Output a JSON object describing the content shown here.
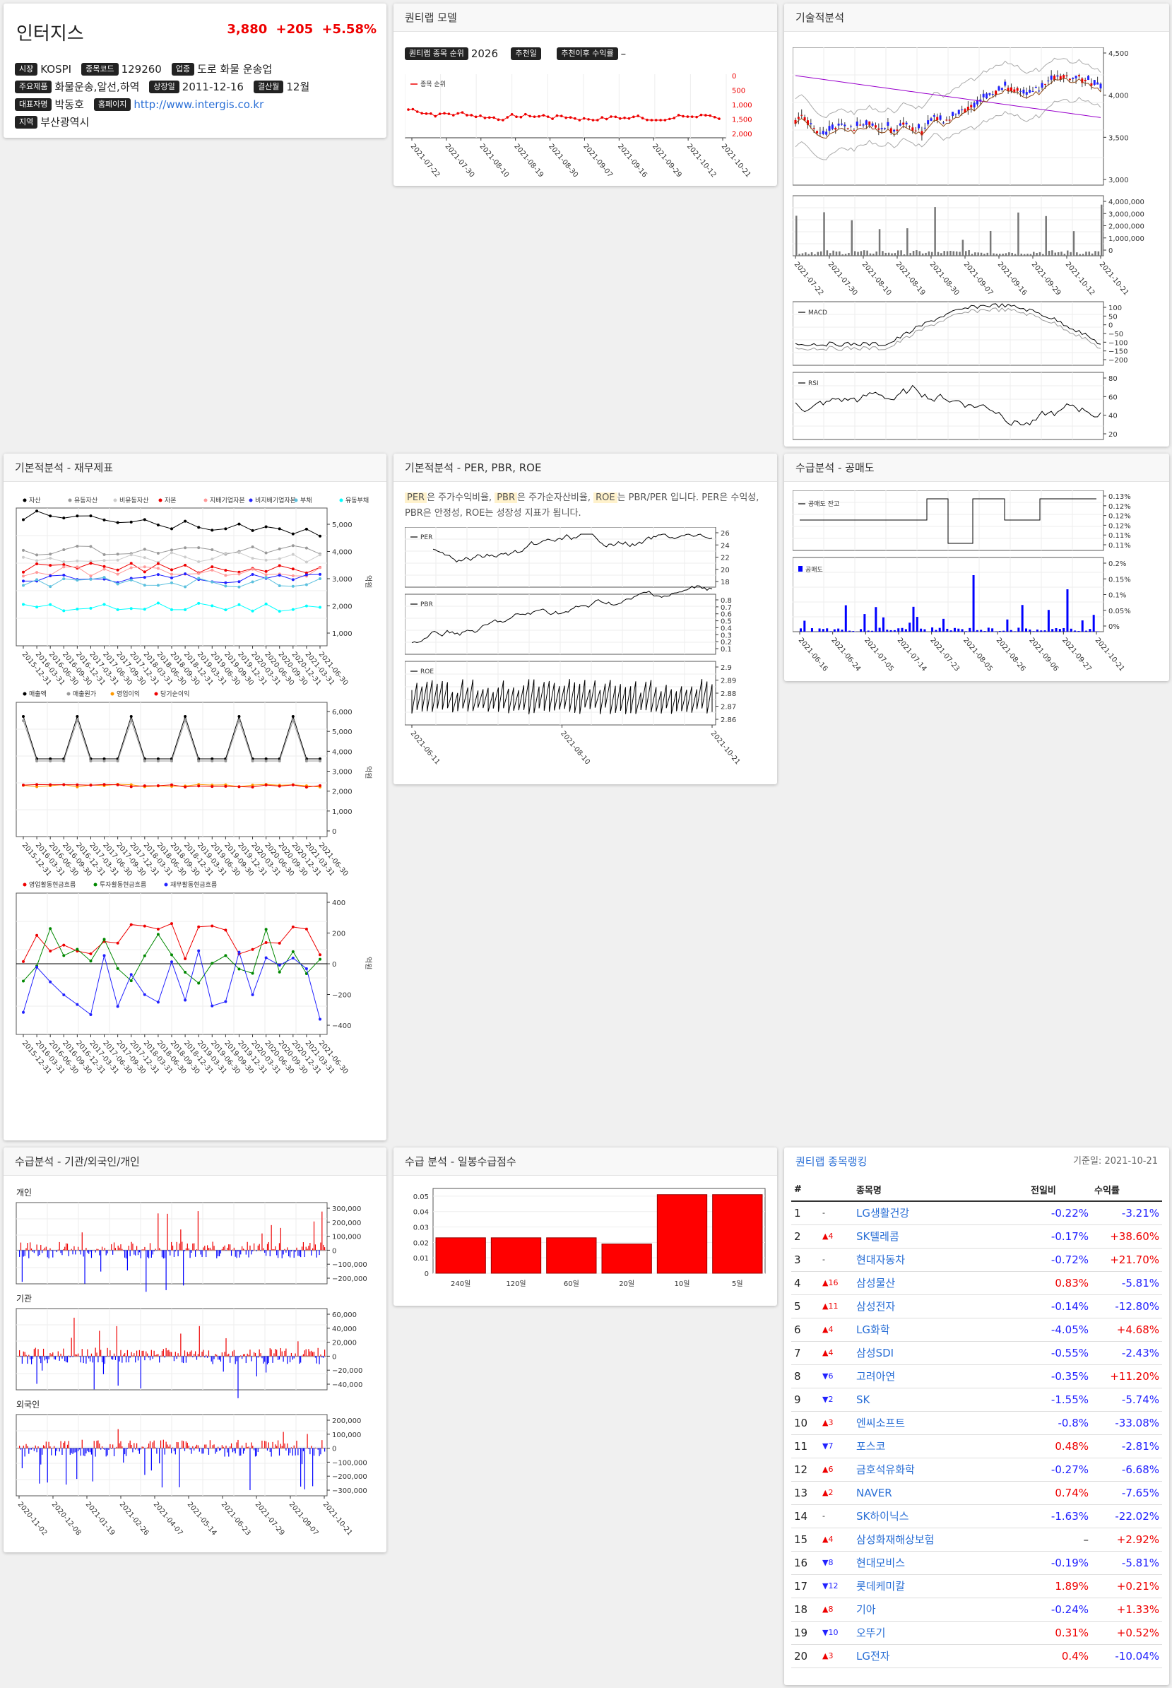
{
  "stock": {
    "name": "인터지스",
    "price": "3,880",
    "change": "+205",
    "pct": "+5.58%",
    "market_label": "시장",
    "market": "KOSPI",
    "code_label": "종목코드",
    "code": "129260",
    "industry_label": "업종",
    "industry": "도로 화물 운송업",
    "product_label": "주요제품",
    "product": "화물운송,알선,하역",
    "listed_label": "상장일",
    "listed": "2011-12-16",
    "settle_label": "결산월",
    "settle": "12월",
    "ceo_label": "대표자명",
    "ceo": "박동호",
    "homepage_label": "홈페이지",
    "homepage": "http://www.intergis.co.kr",
    "region_label": "지역",
    "region": "부산광역시"
  },
  "quant": {
    "title": "퀀티랩 모델",
    "rank_label": "퀀티랩 종목 순위",
    "rank": "2026",
    "rec_label": "추천일",
    "rec_value": "",
    "ret_label": "추천이후 수익률",
    "ret_value": "–",
    "legend": "종목 순위",
    "yticks": [
      "0",
      "500",
      "1,000",
      "1,500",
      "2,000"
    ],
    "xticks": [
      "2021-07-22",
      "2021-07-30",
      "2021-08-10",
      "2021-08-19",
      "2021-08-30",
      "2021-09-07",
      "2021-09-16",
      "2021-09-29",
      "2021-10-12",
      "2021-10-21"
    ]
  },
  "tech": {
    "title": "기술적분석",
    "price_ticks": [
      "4,500",
      "4,000",
      "3,500",
      "3,000"
    ],
    "vol_ticks": [
      "4,000,000",
      "3,000,000",
      "2,000,000",
      "1,000,000",
      "0"
    ],
    "macd_label": "MACD",
    "macd_ticks": [
      "100",
      "50",
      "0",
      "−50",
      "−100",
      "−150",
      "−200"
    ],
    "rsi_label": "RSI",
    "rsi_ticks": [
      "80",
      "60",
      "40",
      "20"
    ],
    "xticks": [
      "2021-07-22",
      "2021-07-30",
      "2021-08-10",
      "2021-08-19",
      "2021-08-30",
      "2021-09-07",
      "2021-09-16",
      "2021-09-29",
      "2021-10-12",
      "2021-10-21"
    ]
  },
  "fund": {
    "title": "기본적분석 - 재무제표",
    "unit": "억원",
    "bs_legend": [
      "자산",
      "유동자산",
      "비유동자산",
      "자본",
      "지배기업자본",
      "비지배기업자본",
      "부채",
      "유동부채"
    ],
    "bs_ticks": [
      "5,000",
      "4,000",
      "3,000",
      "2,000",
      "1,000"
    ],
    "is_legend": [
      "매출액",
      "매출원가",
      "영업이익",
      "당기순이익"
    ],
    "is_ticks": [
      "6,000",
      "5,000",
      "4,000",
      "3,000",
      "2,000",
      "1,000",
      "0"
    ],
    "cf_legend": [
      "영업활동현금흐름",
      "투자활동현금흐름",
      "재무활동현금흐름"
    ],
    "cf_ticks": [
      "400",
      "200",
      "0",
      "−200",
      "−400"
    ],
    "dates": [
      "2015-12-31",
      "2016-03-31",
      "2016-06-30",
      "2016-09-30",
      "2016-12-31",
      "2017-03-31",
      "2017-06-30",
      "2017-09-30",
      "2017-12-31",
      "2018-03-31",
      "2018-06-30",
      "2018-09-30",
      "2018-12-31",
      "2019-03-31",
      "2019-06-30",
      "2019-09-30",
      "2019-12-31",
      "2020-03-31",
      "2020-06-30",
      "2020-09-30",
      "2020-12-31",
      "2021-03-31",
      "2021-06-30"
    ]
  },
  "per": {
    "title": "기본적분석 - PER, PBR, ROE",
    "t1": "PER",
    "d1": "은 주가수익비율, ",
    "t2": "PBR",
    "d2": "은 주가순자산비율, ",
    "t3": "ROE",
    "d3": "는 PBR/PER 입니다. PER은 수익성, PBR은 안정성, ROE는 성장성 지표가 됩니다.",
    "per_label": "PER",
    "per_ticks": [
      "26",
      "24",
      "22",
      "20",
      "18"
    ],
    "pbr_label": "PBR",
    "pbr_ticks": [
      "0.8",
      "0.7",
      "0.6",
      "0.5",
      "0.4",
      "0.3",
      "0.2",
      "0.1"
    ],
    "roe_label": "ROE",
    "roe_ticks": [
      "2.9",
      "2.89",
      "2.88",
      "2.87",
      "2.86"
    ],
    "xticks": [
      "2021-06-11",
      "2021-08-10",
      "2021-10-21"
    ]
  },
  "short": {
    "title": "수급분석 - 공매도",
    "bal_label": "공매도 잔고",
    "bal_ticks": [
      "0.13%",
      "0.12%",
      "0.12%",
      "0.12%",
      "0.11%",
      "0.11%"
    ],
    "vol_label": "공매도",
    "vol_ticks": [
      "0.2%",
      "0.15%",
      "0.1%",
      "0.05%",
      "0%"
    ],
    "xticks": [
      "2021-06-16",
      "2021-06-24",
      "2021-07-05",
      "2021-07-14",
      "2021-07-23",
      "2021-08-05",
      "2021-08-26",
      "2021-09-06",
      "2021-09-27",
      "2021-10-21"
    ]
  },
  "flow": {
    "title": "수급분석 - 기관/외국인/개인",
    "ind_label": "개인",
    "ind_ticks": [
      "300,000",
      "200,000",
      "100,000",
      "0",
      "−100,000",
      "−200,000"
    ],
    "inst_label": "기관",
    "inst_ticks": [
      "60,000",
      "40,000",
      "20,000",
      "0",
      "−20,000",
      "−40,000"
    ],
    "for_label": "외국인",
    "for_ticks": [
      "200,000",
      "100,000",
      "0",
      "−100,000",
      "−200,000",
      "−300,000"
    ],
    "xticks": [
      "2020-11-02",
      "2020-12-08",
      "2021-01-19",
      "2021-02-26",
      "2021-04-07",
      "2021-05-14",
      "2021-06-23",
      "2021-07-29",
      "2021-09-07",
      "2021-10-21"
    ]
  },
  "score": {
    "title": "수급 분석 - 일봉수급점수",
    "chart_data": {
      "type": "bar",
      "categories": [
        "240일",
        "120일",
        "60일",
        "20일",
        "10일",
        "5일"
      ],
      "values": [
        0.023,
        0.023,
        0.023,
        0.019,
        0.051,
        0.051
      ],
      "ylim": [
        0,
        0.055
      ],
      "yticks": [
        "0.05",
        "0.04",
        "0.03",
        "0.02",
        "0.01",
        "0"
      ],
      "color": "#ff0000"
    }
  },
  "rank": {
    "title": "퀀티랩 종목랭킹",
    "date": "기준일: 2021-10-21",
    "h_no": "#",
    "h_name": "종목명",
    "h_day": "전일비",
    "h_ret": "수익률",
    "rows": [
      {
        "no": "1",
        "mv": "-",
        "name": "LG생활건강",
        "day": "-0.22%",
        "ret": "-3.21%"
      },
      {
        "no": "2",
        "mv": "▲4",
        "name": "SK텔레콤",
        "day": "-0.17%",
        "ret": "+38.60%"
      },
      {
        "no": "3",
        "mv": "-",
        "name": "현대자동차",
        "day": "-0.72%",
        "ret": "+21.70%"
      },
      {
        "no": "4",
        "mv": "▲16",
        "name": "삼성물산",
        "day": "0.83%",
        "ret": "-5.81%"
      },
      {
        "no": "5",
        "mv": "▲11",
        "name": "삼성전자",
        "day": "-0.14%",
        "ret": "-12.80%"
      },
      {
        "no": "6",
        "mv": "▲4",
        "name": "LG화학",
        "day": "-4.05%",
        "ret": "+4.68%"
      },
      {
        "no": "7",
        "mv": "▲4",
        "name": "삼성SDI",
        "day": "-0.55%",
        "ret": "-2.43%"
      },
      {
        "no": "8",
        "mv": "▼6",
        "name": "고려아연",
        "day": "-0.35%",
        "ret": "+11.20%"
      },
      {
        "no": "9",
        "mv": "▼2",
        "name": "SK",
        "day": "-1.55%",
        "ret": "-5.74%"
      },
      {
        "no": "10",
        "mv": "▲3",
        "name": "엔씨소프트",
        "day": "-0.8%",
        "ret": "-33.08%"
      },
      {
        "no": "11",
        "mv": "▼7",
        "name": "포스코",
        "day": "0.48%",
        "ret": "-2.81%"
      },
      {
        "no": "12",
        "mv": "▲6",
        "name": "금호석유화학",
        "day": "-0.27%",
        "ret": "-6.68%"
      },
      {
        "no": "13",
        "mv": "▲2",
        "name": "NAVER",
        "day": "0.74%",
        "ret": "-7.65%"
      },
      {
        "no": "14",
        "mv": "-",
        "name": "SK하이닉스",
        "day": "-1.63%",
        "ret": "-22.02%"
      },
      {
        "no": "15",
        "mv": "▲4",
        "name": "삼성화재해상보험",
        "day": "–",
        "ret": "+2.92%"
      },
      {
        "no": "16",
        "mv": "▼8",
        "name": "현대모비스",
        "day": "-0.19%",
        "ret": "-5.81%"
      },
      {
        "no": "17",
        "mv": "▼12",
        "name": "롯데케미칼",
        "day": "1.89%",
        "ret": "+0.21%"
      },
      {
        "no": "18",
        "mv": "▲8",
        "name": "기아",
        "day": "-0.24%",
        "ret": "+1.33%"
      },
      {
        "no": "19",
        "mv": "▼10",
        "name": "오뚜기",
        "day": "0.31%",
        "ret": "+0.52%"
      },
      {
        "no": "20",
        "mv": "▲3",
        "name": "LG전자",
        "day": "0.4%",
        "ret": "-10.04%"
      }
    ]
  }
}
